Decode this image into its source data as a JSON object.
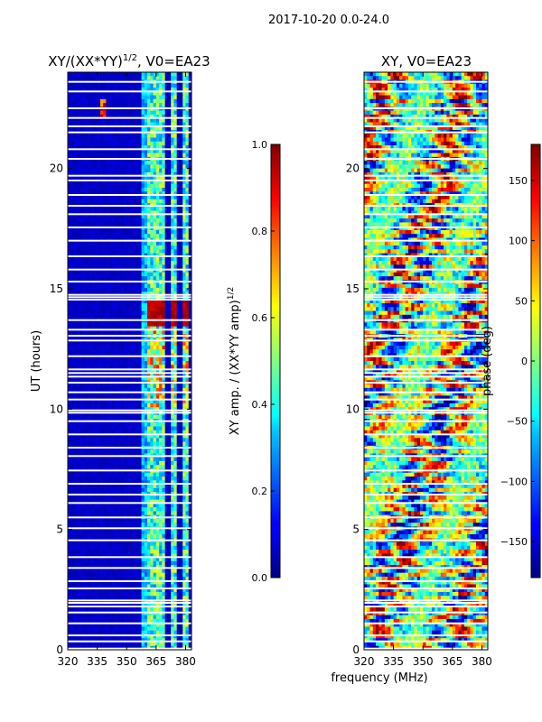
{
  "figure": {
    "suptitle": "2017-10-20 0.0-24.0",
    "xlabel": "frequency (MHz)"
  },
  "chart_data": [
    {
      "type": "heatmap",
      "title_main": "XY/(XX*YY)",
      "title_exp": "1/2",
      "title_tail": ", V0=EA23",
      "xlabel": "",
      "ylabel": "UT (hours)",
      "x_ticks": [
        320,
        335,
        350,
        365,
        380
      ],
      "xlim": [
        320,
        383
      ],
      "y_ticks": [
        0,
        5,
        10,
        15,
        20
      ],
      "ylim": [
        0,
        24
      ],
      "colorbar": {
        "label_main": "XY amp. / (XX*YY amp)",
        "label_exp": "1/2",
        "ticks": [
          "0.0",
          "0.2",
          "0.4",
          "0.6",
          "0.8",
          "1.0"
        ],
        "range": [
          0,
          1
        ]
      },
      "colormap": "jet",
      "description_ranges": {
        "background_level": 0.05,
        "band_channels_mhz": [
          [
            360,
            370
          ],
          [
            372,
            376
          ],
          [
            378,
            382
          ]
        ],
        "band_level": 0.45,
        "bright_patch_hours": [
          13.5,
          14.5
        ],
        "bright_patch_level": 0.9
      }
    },
    {
      "type": "heatmap",
      "title_main": "XY, V0=EA23",
      "xlabel": "",
      "ylabel": "",
      "x_ticks": [
        320,
        335,
        350,
        365,
        380
      ],
      "xlim": [
        320,
        383
      ],
      "y_ticks": [
        0,
        5,
        10,
        15,
        20
      ],
      "ylim": [
        0,
        24
      ],
      "colorbar": {
        "label_main": "phase (deg)",
        "ticks": [
          "150",
          "100",
          "50",
          "0",
          "−50",
          "−100",
          "−150"
        ],
        "range": [
          -180,
          180
        ]
      },
      "colormap": "jet"
    }
  ],
  "flagged_rows_hours": [
    0.05,
    0.35,
    0.6,
    1.1,
    1.55,
    1.8,
    1.95,
    2.05,
    2.55,
    2.85,
    3.4,
    3.85,
    4.55,
    5.05,
    5.5,
    6.1,
    6.45,
    6.9,
    7.45,
    8.05,
    8.4,
    8.95,
    9.5,
    9.85,
    9.95,
    10.4,
    10.7,
    11.1,
    11.35,
    11.5,
    11.65,
    12.2,
    12.85,
    13.05,
    13.3,
    13.7,
    14.55,
    14.65,
    14.75,
    15.3,
    15.8,
    16.35,
    17.0,
    17.55,
    18.1,
    18.45,
    18.9,
    19.5,
    19.7,
    20.4,
    20.8,
    21.5,
    21.75,
    22.1,
    22.5,
    23.2,
    23.6
  ]
}
